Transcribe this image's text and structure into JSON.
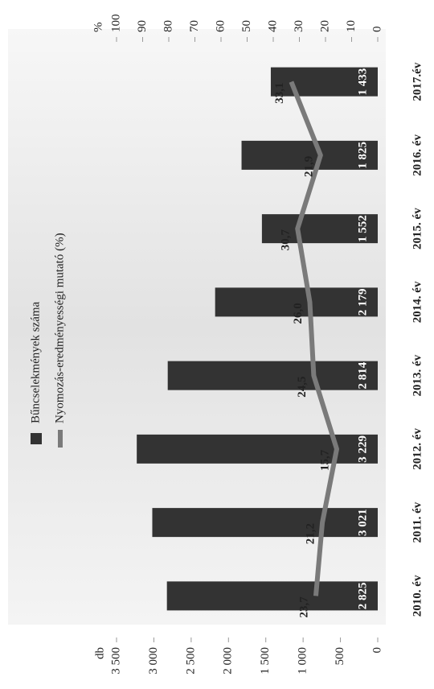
{
  "chart_data": {
    "type": "bar",
    "categories": [
      "2010. év",
      "2011. év",
      "2012. év",
      "2013. év",
      "2014. év",
      "2015. év",
      "2016. év",
      "2017.év"
    ],
    "series": [
      {
        "name": "Bűncselekmények száma",
        "type": "bar",
        "color": "#333333",
        "values": [
          2825,
          3021,
          3229,
          2814,
          2179,
          1552,
          1825,
          1433
        ],
        "value_labels": [
          "2 825",
          "3 021",
          "3 229",
          "2 814",
          "2 179",
          "1 552",
          "1 825",
          "1 433"
        ]
      },
      {
        "name": "Nyomozás-eredményességi mutató (%)",
        "type": "line",
        "axis": "y2",
        "color": "#7a7a7a",
        "values": [
          23.7,
          21.2,
          15.7,
          24.5,
          26.0,
          30.7,
          21.9,
          33.1
        ],
        "value_labels": [
          "23,7",
          "21,2",
          "15,7",
          "24,5",
          "26,0",
          "30,7",
          "21,9",
          "33,1"
        ]
      }
    ],
    "y_label": "db",
    "y2_label": "%",
    "ylim": [
      0,
      3500
    ],
    "yticks": [
      0,
      {
        "value": 500,
        "label": "500"
      },
      {
        "value": 1000,
        "label": "1 000"
      },
      {
        "value": 1500,
        "label": "1 500"
      },
      {
        "value": 2000,
        "label": "2 000"
      },
      {
        "value": 2500,
        "label": "2 500"
      },
      {
        "value": 3000,
        "label": "3 000"
      },
      {
        "value": 3500,
        "label": "3 500"
      }
    ],
    "y2lim": [
      0,
      100
    ],
    "y2ticks": [
      0,
      10,
      20,
      30,
      40,
      50,
      60,
      70,
      80,
      90,
      100
    ]
  }
}
